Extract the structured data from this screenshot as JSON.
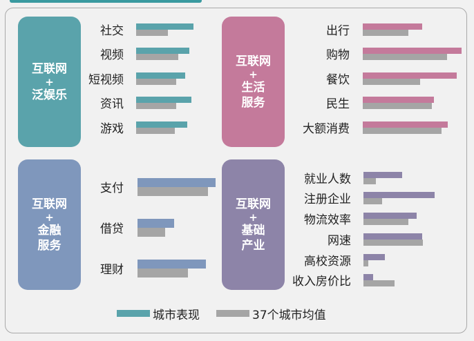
{
  "colors": {
    "avg": "#a5a5a5",
    "panel_entertainment": "#5aa3ab",
    "panel_life": "#c47a9b",
    "panel_finance": "#7f97bc",
    "panel_infra": "#8d84a8"
  },
  "panels": [
    {
      "line1": "互联网",
      "plus": "+",
      "line2": "泛娱乐",
      "line3": ""
    },
    {
      "line1": "互联网",
      "plus": "+",
      "line2": "生活",
      "line3": "服务"
    },
    {
      "line1": "互联网",
      "plus": "+",
      "line2": "金融",
      "line3": "服务"
    },
    {
      "line1": "互联网",
      "plus": "+",
      "line2": "基础",
      "line3": "产业"
    }
  ],
  "legend": {
    "city": "城市表现",
    "avg": "37个城市均值"
  },
  "chart_data": [
    {
      "type": "bar",
      "title": "",
      "categories": [
        "社交",
        "视频",
        "短视频",
        "资讯",
        "游戏"
      ],
      "series": [
        {
          "name": "城市表现",
          "color": "#5aa3ab",
          "values": [
            83,
            77,
            71,
            80,
            74
          ]
        },
        {
          "name": "37个城市均值",
          "color": "#a5a5a5",
          "values": [
            46,
            61,
            58,
            58,
            56
          ]
        }
      ],
      "xlim": [
        0,
        100
      ]
    },
    {
      "type": "bar",
      "title": "",
      "categories": [
        "出行",
        "购物",
        "餐饮",
        "民生",
        "大额消费"
      ],
      "series": [
        {
          "name": "城市表现",
          "color": "#c47a9b",
          "values": [
            60,
            100,
            95,
            72,
            86
          ]
        },
        {
          "name": "37个城市均值",
          "color": "#a5a5a5",
          "values": [
            46,
            85,
            58,
            70,
            80
          ]
        }
      ],
      "xlim": [
        0,
        100
      ]
    },
    {
      "type": "bar",
      "title": "",
      "categories": [
        "支付",
        "借贷",
        "理财"
      ],
      "series": [
        {
          "name": "城市表现",
          "color": "#7f97bc",
          "values": [
            100,
            47,
            88
          ]
        },
        {
          "name": "37个城市均值",
          "color": "#a5a5a5",
          "values": [
            90,
            35,
            65
          ]
        }
      ],
      "xlim": [
        0,
        100
      ]
    },
    {
      "type": "bar",
      "title": "",
      "categories": [
        "就业人数",
        "注册企业",
        "物流效率",
        "网速",
        "高校资源",
        "收入房价比"
      ],
      "series": [
        {
          "name": "城市表现",
          "color": "#8d84a8",
          "values": [
            31,
            57,
            43,
            47,
            17,
            8
          ]
        },
        {
          "name": "37个城市均值",
          "color": "#a5a5a5",
          "values": [
            10,
            15,
            36,
            48,
            4,
            25
          ]
        }
      ],
      "xlim": [
        0,
        100
      ]
    }
  ]
}
